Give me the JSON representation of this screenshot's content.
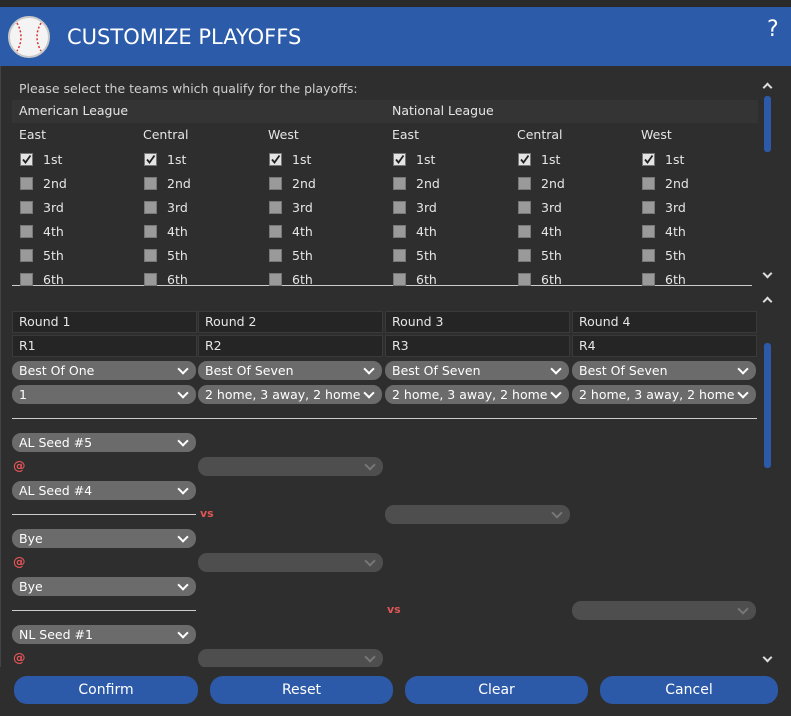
{
  "title": "CUSTOMIZE PLAYOFFS",
  "help": "?",
  "prompt": "Please select the teams which qualify for the playoffs:",
  "leagues": [
    {
      "name": "American League",
      "divisions": [
        "East",
        "Central",
        "West"
      ]
    },
    {
      "name": "National League",
      "divisions": [
        "East",
        "Central",
        "West"
      ]
    }
  ],
  "places": [
    {
      "label": "1st",
      "checked": true
    },
    {
      "label": "2nd",
      "checked": false
    },
    {
      "label": "3rd",
      "checked": false
    },
    {
      "label": "4th",
      "checked": false
    },
    {
      "label": "5th",
      "checked": false
    },
    {
      "label": "6th",
      "checked": false
    }
  ],
  "rounds": [
    {
      "name": "Round 1",
      "abbr": "R1",
      "series": "Best Of One",
      "format": "1"
    },
    {
      "name": "Round 2",
      "abbr": "R2",
      "series": "Best Of Seven",
      "format": "2 home, 3 away, 2 home"
    },
    {
      "name": "Round 3",
      "abbr": "R3",
      "series": "Best Of Seven",
      "format": "2 home, 3 away, 2 home"
    },
    {
      "name": "Round 4",
      "abbr": "R4",
      "series": "Best Of Seven",
      "format": "2 home, 3 away, 2 home"
    }
  ],
  "bracket": {
    "seeds": [
      "AL Seed #5",
      "AL Seed #4",
      "Bye",
      "Bye",
      "NL Seed #1"
    ],
    "at": "@",
    "vs": "vs"
  },
  "buttons": [
    "Confirm",
    "Reset",
    "Clear",
    "Cancel"
  ]
}
